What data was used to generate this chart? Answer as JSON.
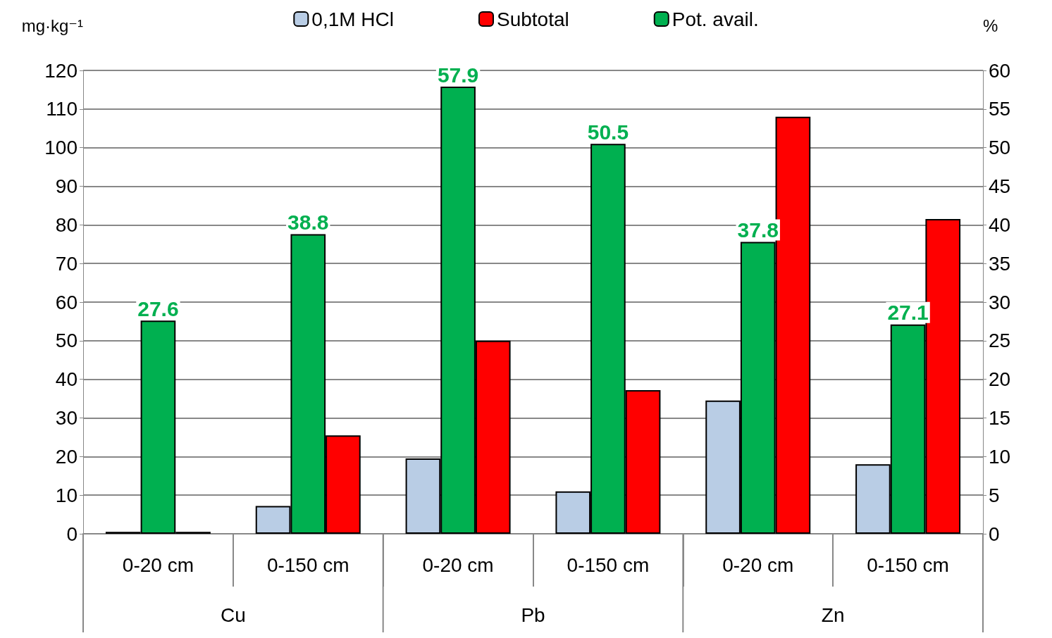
{
  "chart_data": {
    "type": "bar",
    "ylabel": "mg·kg⁻¹",
    "y2label": "%",
    "categories": [
      "0-20 cm",
      "0-150 cm",
      "0-20 cm",
      "0-150 cm",
      "0-20 cm",
      "0-150 cm"
    ],
    "series": [
      {
        "name": "0,1M HCl",
        "color": "#b9cde5",
        "values": [
          0.5,
          7.2,
          19.5,
          11,
          34.5,
          18
        ]
      },
      {
        "name": "Pot. avail.",
        "color": "#00b050",
        "axis": "y2",
        "values": [
          27.6,
          38.8,
          57.9,
          50.5,
          37.8,
          27.1
        ],
        "value_labels": [
          "27.6",
          "38.8",
          "57.9",
          "50.5",
          "37.8",
          "27.1"
        ]
      },
      {
        "name": "Subtotal",
        "color": "#ff0000",
        "values": [
          0.5,
          25.5,
          50,
          37.2,
          108,
          81.5
        ]
      }
    ],
    "ylim": [
      0,
      120
    ],
    "yticks": [
      0,
      10,
      20,
      30,
      40,
      50,
      60,
      70,
      80,
      90,
      100,
      110,
      120
    ],
    "y2lim": [
      0,
      60
    ],
    "y2ticks": [
      0,
      5,
      10,
      15,
      20,
      25,
      30,
      35,
      40,
      45,
      50,
      55,
      60
    ],
    "annotations": [
      "Cu",
      "Pb",
      "Zn"
    ],
    "grid": "y",
    "legend": "top"
  }
}
